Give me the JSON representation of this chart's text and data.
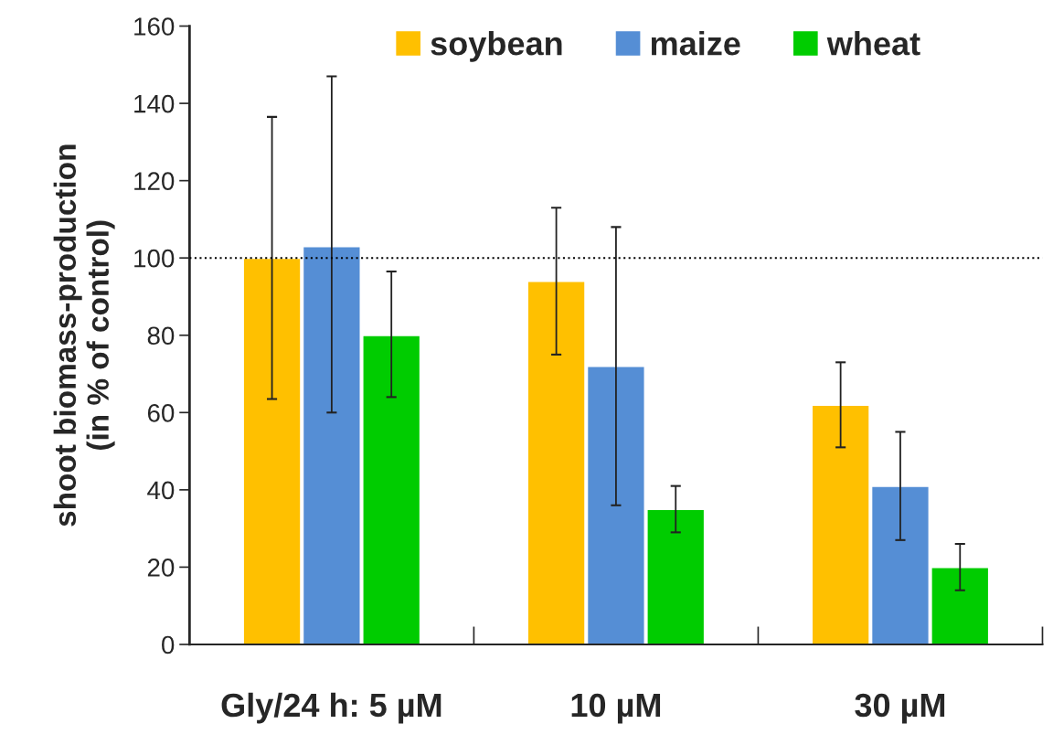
{
  "chart_data": {
    "type": "bar",
    "ylabel": "shoot biomass-production\n(in % of control)",
    "categories": [
      "Gly/24 h: 5 µM",
      "10 µM",
      "30 µM"
    ],
    "series": [
      {
        "name": "soybean",
        "color": "#ffc000",
        "values": [
          100,
          94,
          62
        ],
        "errors": [
          [
            63.5,
            136.5
          ],
          [
            75,
            113
          ],
          [
            51,
            73
          ]
        ]
      },
      {
        "name": "maize",
        "color": "#558ed5",
        "values": [
          103,
          72,
          41
        ],
        "errors": [
          [
            60,
            147
          ],
          [
            36,
            108
          ],
          [
            27,
            55
          ]
        ]
      },
      {
        "name": "wheat",
        "color": "#00cc00",
        "values": [
          80,
          35,
          20
        ],
        "errors": [
          [
            64,
            96.5
          ],
          [
            29,
            41
          ],
          [
            14,
            26
          ]
        ]
      }
    ],
    "ylim": [
      0,
      160
    ],
    "yticks": [
      0,
      20,
      40,
      60,
      80,
      100,
      120,
      140,
      160
    ],
    "ref_lines": [
      {
        "axis": "y",
        "value": 100,
        "color": "#000000",
        "line_style": "dotted"
      }
    ],
    "legend": "top",
    "grid": false
  }
}
